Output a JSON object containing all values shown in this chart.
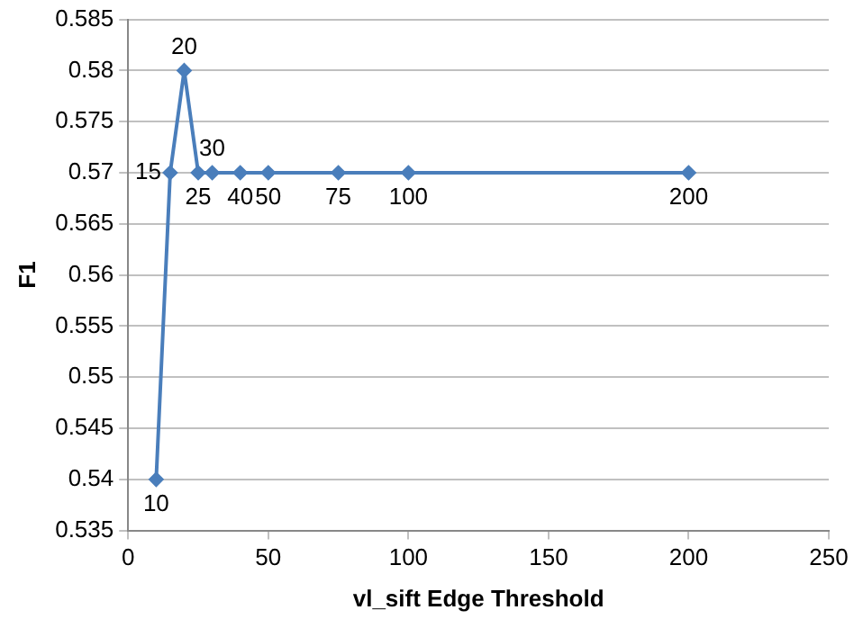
{
  "chart_data": {
    "type": "line",
    "xlabel": "vl_sift Edge Threshold",
    "ylabel": "F1",
    "x": [
      10,
      15,
      20,
      25,
      30,
      40,
      50,
      75,
      100,
      200
    ],
    "series": [
      {
        "color": "#4a7ebb",
        "values": [
          0.54,
          0.57,
          0.58,
          0.57,
          0.57,
          0.57,
          0.57,
          0.57,
          0.57,
          0.57
        ]
      }
    ],
    "xlim": [
      0,
      250
    ],
    "xticks": [
      0,
      50,
      100,
      150,
      200,
      250
    ],
    "ylim": [
      0.535,
      0.585
    ],
    "yticks": [
      0.535,
      0.54,
      0.545,
      0.55,
      0.555,
      0.56,
      0.565,
      0.57,
      0.575,
      0.58,
      0.585
    ],
    "grid": "y",
    "marker": "diamond",
    "line_style": "solid",
    "legend": false,
    "annotations": [
      {
        "text": "10",
        "x": 10,
        "y": 0.54
      },
      {
        "text": "15",
        "x": 15,
        "y": 0.57
      },
      {
        "text": "20",
        "x": 20,
        "y": 0.58
      },
      {
        "text": "25",
        "x": 25,
        "y": 0.57
      },
      {
        "text": "30",
        "x": 30,
        "y": 0.57
      },
      {
        "text": "40",
        "x": 40,
        "y": 0.57
      },
      {
        "text": "50",
        "x": 50,
        "y": 0.57
      },
      {
        "text": "75",
        "x": 75,
        "y": 0.57
      },
      {
        "text": "100",
        "x": 100,
        "y": 0.57
      },
      {
        "text": "200",
        "x": 200,
        "y": 0.57
      }
    ]
  }
}
